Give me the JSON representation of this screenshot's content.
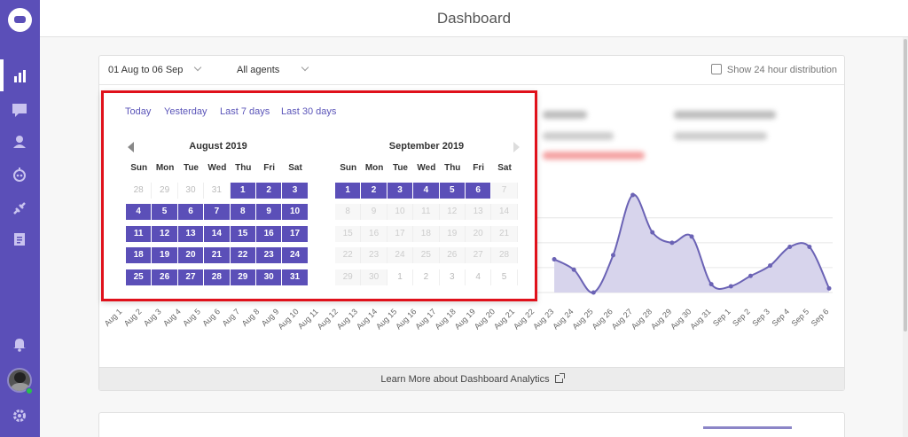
{
  "app": {
    "page_title": "Dashboard"
  },
  "sidebar": {
    "icons": [
      "logo-icon",
      "analytics-icon",
      "conversations-icon",
      "contacts-icon",
      "bot-icon",
      "integrations-icon",
      "reports-icon",
      "notifications-icon",
      "settings-icon"
    ]
  },
  "filters": {
    "date_range": "01 Aug to 06 Sep",
    "agents": "All agents",
    "show_24h_label": "Show 24 hour distribution"
  },
  "date_picker": {
    "presets": [
      "Today",
      "Yesterday",
      "Last 7 days",
      "Last 30 days"
    ],
    "weekdays": [
      "Sun",
      "Mon",
      "Tue",
      "Wed",
      "Thu",
      "Fri",
      "Sat"
    ],
    "months": [
      {
        "title": "August 2019",
        "days": [
          [
            "28",
            "other"
          ],
          [
            "29",
            "other"
          ],
          [
            "30",
            "other"
          ],
          [
            "31",
            "other"
          ],
          [
            "1",
            "sel"
          ],
          [
            "2",
            "sel"
          ],
          [
            "3",
            "sel"
          ],
          [
            "4",
            "sel"
          ],
          [
            "5",
            "sel"
          ],
          [
            "6",
            "sel"
          ],
          [
            "7",
            "sel"
          ],
          [
            "8",
            "sel"
          ],
          [
            "9",
            "sel"
          ],
          [
            "10",
            "sel"
          ],
          [
            "11",
            "sel"
          ],
          [
            "12",
            "sel"
          ],
          [
            "13",
            "sel"
          ],
          [
            "14",
            "sel"
          ],
          [
            "15",
            "sel"
          ],
          [
            "16",
            "sel"
          ],
          [
            "17",
            "sel"
          ],
          [
            "18",
            "sel"
          ],
          [
            "19",
            "sel"
          ],
          [
            "20",
            "sel"
          ],
          [
            "21",
            "sel"
          ],
          [
            "22",
            "sel"
          ],
          [
            "23",
            "sel"
          ],
          [
            "24",
            "sel"
          ],
          [
            "25",
            "sel"
          ],
          [
            "26",
            "sel"
          ],
          [
            "27",
            "sel"
          ],
          [
            "28",
            "sel"
          ],
          [
            "29",
            "sel"
          ],
          [
            "30",
            "sel"
          ],
          [
            "31",
            "sel"
          ]
        ]
      },
      {
        "title": "September 2019",
        "days": [
          [
            "1",
            "sel"
          ],
          [
            "2",
            "sel"
          ],
          [
            "3",
            "sel"
          ],
          [
            "4",
            "sel"
          ],
          [
            "5",
            "sel"
          ],
          [
            "6",
            "sel"
          ],
          [
            "7",
            "dis"
          ],
          [
            "8",
            "dis"
          ],
          [
            "9",
            "dis"
          ],
          [
            "10",
            "dis"
          ],
          [
            "11",
            "dis"
          ],
          [
            "12",
            "dis"
          ],
          [
            "13",
            "dis"
          ],
          [
            "14",
            "dis"
          ],
          [
            "15",
            "dis"
          ],
          [
            "16",
            "dis"
          ],
          [
            "17",
            "dis"
          ],
          [
            "18",
            "dis"
          ],
          [
            "19",
            "dis"
          ],
          [
            "20",
            "dis"
          ],
          [
            "21",
            "dis"
          ],
          [
            "22",
            "dis"
          ],
          [
            "23",
            "dis"
          ],
          [
            "24",
            "dis"
          ],
          [
            "25",
            "dis"
          ],
          [
            "26",
            "dis"
          ],
          [
            "27",
            "dis"
          ],
          [
            "28",
            "dis"
          ],
          [
            "29",
            "dis"
          ],
          [
            "30",
            "dis"
          ],
          [
            "1",
            "other"
          ],
          [
            "2",
            "other"
          ],
          [
            "3",
            "other"
          ],
          [
            "4",
            "other"
          ],
          [
            "5",
            "other"
          ]
        ]
      }
    ]
  },
  "chart_data": {
    "type": "area",
    "categories": [
      "Aug 1",
      "Aug 2",
      "Aug 3",
      "Aug 4",
      "Aug 5",
      "Aug 6",
      "Aug 7",
      "Aug 8",
      "Aug 9",
      "Aug 10",
      "Aug 11",
      "Aug 12",
      "Aug 13",
      "Aug 14",
      "Aug 15",
      "Aug 16",
      "Aug 17",
      "Aug 18",
      "Aug 19",
      "Aug 20",
      "Aug 21",
      "Aug 22",
      "Aug 23",
      "Aug 24",
      "Aug 25",
      "Aug 26",
      "Aug 27",
      "Aug 28",
      "Aug 29",
      "Aug 30",
      "Aug 31",
      "Sep 1",
      "Sep 2",
      "Sep 3",
      "Sep 4",
      "Sep 5",
      "Sep 6"
    ],
    "visible_values": {
      "Aug 23": 1.6,
      "Aug 24": 1.1,
      "Aug 25": 0.0,
      "Aug 26": 1.8,
      "Aug 27": 4.7,
      "Aug 28": 2.9,
      "Aug 29": 2.4,
      "Aug 30": 2.7,
      "Aug 31": 0.4,
      "Sep 1": 0.3,
      "Sep 2": 0.8,
      "Sep 3": 1.3,
      "Sep 4": 2.2,
      "Sep 5": 2.2,
      "Sep 6": 0.2
    },
    "ylim": [
      0,
      5
    ],
    "grid": true,
    "color": "#6b63b5",
    "fill": "#d7d4ec"
  },
  "footer": {
    "learn_more": "Learn More about Dashboard Analytics"
  },
  "colors": {
    "sidebar": "#5b4fb8",
    "accent": "#5b4fb8",
    "highlight_border": "#e0111b"
  }
}
